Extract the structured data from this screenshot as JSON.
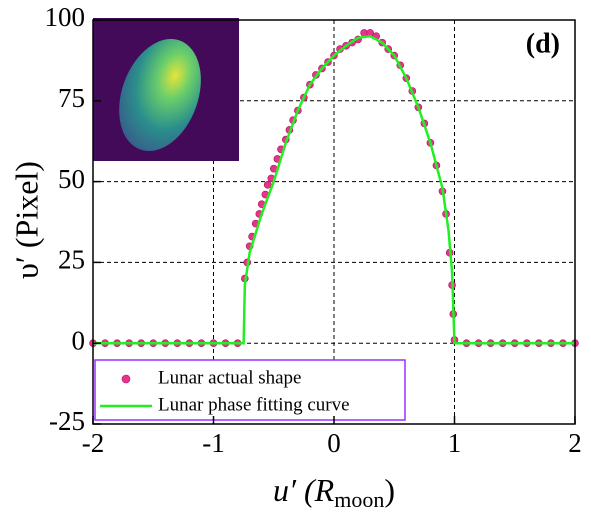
{
  "chart_data": {
    "type": "scatter",
    "annotation": "(d)",
    "ylabel": "υ′ (Pixel)",
    "xlabel": {
      "main": "u′ (R",
      "sub": "moon",
      "end": ")"
    },
    "xlim": [
      -2,
      2
    ],
    "xticks": [
      -2,
      -1,
      0,
      1,
      2
    ],
    "ylim": [
      -25,
      100
    ],
    "yticks": [
      -25,
      0,
      25,
      50,
      75,
      100
    ],
    "grid": true,
    "legend": "lower left",
    "series": [
      {
        "name": "Lunar actual shape",
        "color": "#e8338a",
        "kind": "scatter",
        "x": [
          -2,
          -1.9,
          -1.8,
          -1.7,
          -1.6,
          -1.5,
          -1.4,
          -1.3,
          -1.2,
          -1.1,
          -1,
          -0.9,
          -0.8,
          -0.74,
          -0.72,
          -0.7,
          -0.68,
          -0.65,
          -0.62,
          -0.6,
          -0.57,
          -0.55,
          -0.52,
          -0.5,
          -0.47,
          -0.44,
          -0.4,
          -0.37,
          -0.34,
          -0.3,
          -0.25,
          -0.2,
          -0.15,
          -0.1,
          -0.05,
          0,
          0.05,
          0.1,
          0.15,
          0.2,
          0.25,
          0.3,
          0.35,
          0.4,
          0.45,
          0.5,
          0.55,
          0.6,
          0.65,
          0.7,
          0.75,
          0.8,
          0.85,
          0.9,
          0.93,
          0.96,
          0.98,
          0.99,
          1.0,
          1.1,
          1.2,
          1.3,
          1.4,
          1.5,
          1.6,
          1.7,
          1.8,
          1.9,
          2
        ],
        "values": [
          0,
          0,
          0,
          0,
          0,
          0,
          0,
          0,
          0,
          0,
          0,
          0,
          0,
          20,
          25,
          30,
          33,
          37,
          40,
          43,
          46,
          49,
          51,
          54,
          57,
          60,
          63,
          66,
          69,
          72,
          76,
          80,
          83,
          85,
          87,
          89,
          91,
          92,
          93,
          94,
          96,
          96,
          95,
          93,
          91,
          89,
          86,
          82,
          78,
          73,
          68,
          62,
          55,
          47,
          40,
          28,
          18,
          9,
          1,
          0,
          0,
          0,
          0,
          0,
          0,
          0,
          0,
          0,
          0
        ]
      },
      {
        "name": "Lunar phase fitting curve",
        "color": "#22ee22",
        "kind": "line",
        "x": [
          -2,
          -0.75,
          -0.74,
          -0.7,
          -0.6,
          -0.5,
          -0.4,
          -0.3,
          -0.2,
          -0.1,
          0,
          0.1,
          0.2,
          0.3,
          0.4,
          0.5,
          0.6,
          0.7,
          0.8,
          0.9,
          0.95,
          0.98,
          1.0,
          2
        ],
        "values": [
          0,
          0,
          18,
          28,
          40,
          50,
          62,
          72,
          80,
          85,
          89,
          92,
          94.5,
          95,
          93,
          89,
          82,
          73,
          62,
          48,
          35,
          22,
          0,
          0
        ]
      }
    ]
  }
}
